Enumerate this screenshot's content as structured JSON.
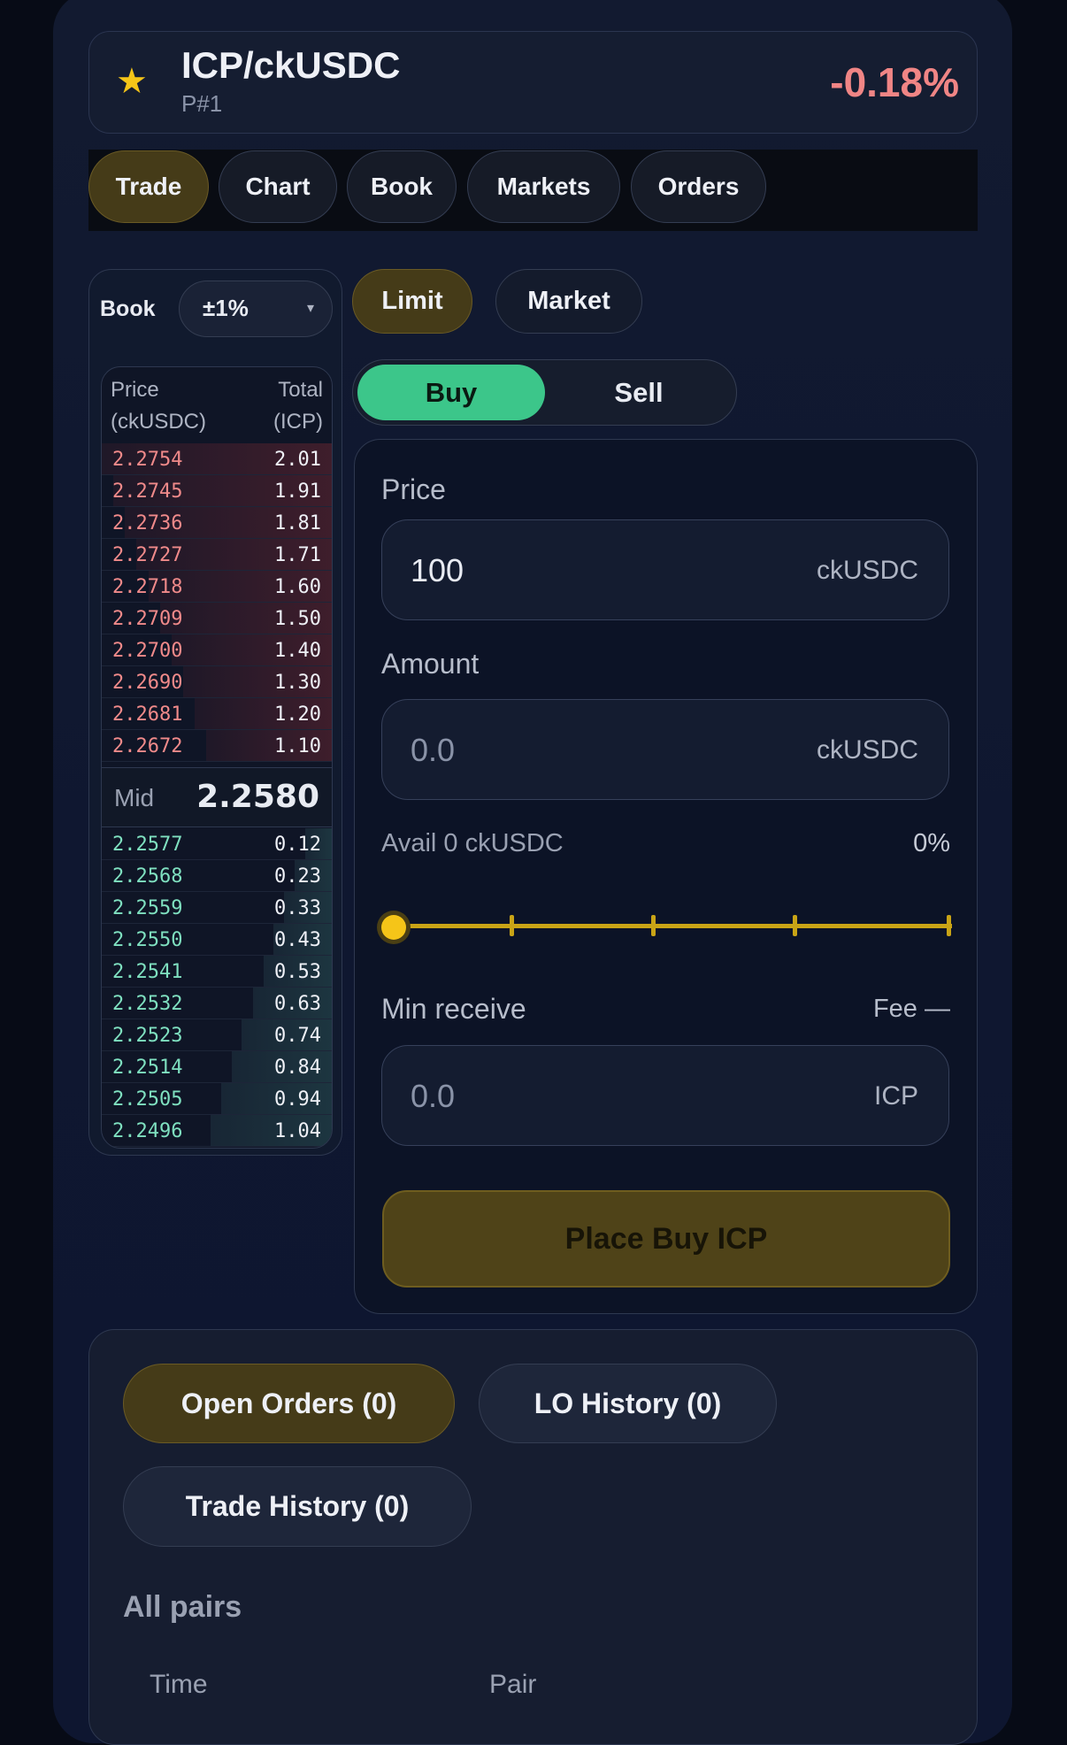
{
  "header": {
    "title": "ICP/ckUSDC",
    "subtitle": "P#1",
    "change": "-0.18%",
    "favorite_icon": "star-icon"
  },
  "tabs": [
    {
      "label": "Trade",
      "active": true
    },
    {
      "label": "Chart"
    },
    {
      "label": "Book"
    },
    {
      "label": "Markets"
    },
    {
      "label": "Orders"
    }
  ],
  "book": {
    "label": "Book",
    "range": "±1%",
    "dropdown_icon": "▾",
    "price_header": "Price",
    "price_unit": "(ckUSDC)",
    "total_header": "Total",
    "total_unit": "(ICP)",
    "asks": [
      {
        "p": "2.2754",
        "q": "2.01"
      },
      {
        "p": "2.2745",
        "q": "1.91"
      },
      {
        "p": "2.2736",
        "q": "1.81"
      },
      {
        "p": "2.2727",
        "q": "1.71"
      },
      {
        "p": "2.2718",
        "q": "1.60"
      },
      {
        "p": "2.2709",
        "q": "1.50"
      },
      {
        "p": "2.2700",
        "q": "1.40"
      },
      {
        "p": "2.2690",
        "q": "1.30"
      },
      {
        "p": "2.2681",
        "q": "1.20"
      },
      {
        "p": "2.2672",
        "q": "1.10"
      }
    ],
    "mid_label": "Mid",
    "mid": "2.2580",
    "bids": [
      {
        "p": "2.2577",
        "q": "0.12"
      },
      {
        "p": "2.2568",
        "q": "0.23"
      },
      {
        "p": "2.2559",
        "q": "0.33"
      },
      {
        "p": "2.2550",
        "q": "0.43"
      },
      {
        "p": "2.2541",
        "q": "0.53"
      },
      {
        "p": "2.2532",
        "q": "0.63"
      },
      {
        "p": "2.2523",
        "q": "0.74"
      },
      {
        "p": "2.2514",
        "q": "0.84"
      },
      {
        "p": "2.2505",
        "q": "0.94"
      },
      {
        "p": "2.2496",
        "q": "1.04"
      }
    ]
  },
  "order_type": {
    "limit": "Limit",
    "market": "Market",
    "active": "Limit"
  },
  "side": {
    "buy": "Buy",
    "sell": "Sell",
    "active": "Buy"
  },
  "form": {
    "price_label": "Price",
    "price_value": "100",
    "price_unit": "ckUSDC",
    "amount_label": "Amount",
    "amount_placeholder": "0.0",
    "amount_unit": "ckUSDC",
    "avail": "Avail 0 ckUSDC",
    "percent": "0%",
    "slider_percent": 0,
    "min_receive_label": "Min receive",
    "fee": "Fee —",
    "min_receive_placeholder": "0.0",
    "min_receive_unit": "ICP",
    "submit": "Place Buy ICP"
  },
  "orders": {
    "tabs": [
      "Open Orders (0)",
      "LO History (0)",
      "Trade History (0)"
    ],
    "active": 0,
    "filter": "All pairs",
    "columns": [
      "Time",
      "Pair"
    ]
  },
  "colors": {
    "accent": "#f5c518",
    "buy": "#3cc68a",
    "sell": "#f08585",
    "bid_text": "#7fe0c0",
    "ask_text": "#f08a8a"
  }
}
